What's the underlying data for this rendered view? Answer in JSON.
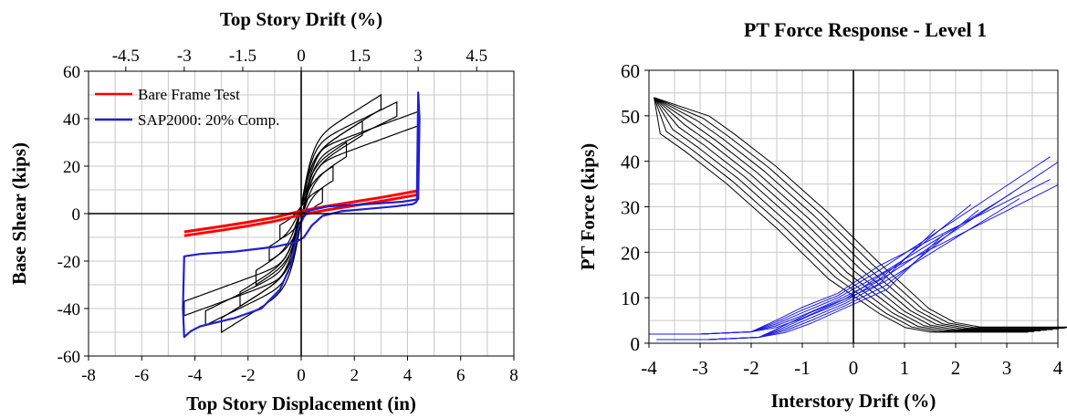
{
  "chart_data": [
    {
      "type": "line",
      "title": "",
      "top_axis_label": "Top Story Drift (%)",
      "top_ticks": [
        "-4.5",
        "-3",
        "-1.5",
        "0",
        "1.5",
        "3",
        "4.5"
      ],
      "top_tick_values": [
        -4.5,
        -3,
        -1.5,
        0,
        1.5,
        3,
        4.5
      ],
      "xlabel": "Top Story Displacement (in)",
      "ylabel": "Base Shear (kips)",
      "xlim": [
        -8,
        8
      ],
      "ylim": [
        -60,
        60
      ],
      "xticks": [
        "-8",
        "-6",
        "-4",
        "-2",
        "0",
        "2",
        "4",
        "6",
        "8"
      ],
      "yticks": [
        "-60",
        "-40",
        "-20",
        "0",
        "20",
        "40",
        "60"
      ],
      "grid": true,
      "legend_position": "top-left",
      "series": [
        {
          "name": "Bare Frame Test",
          "color": "#ff0000",
          "style": "thick-band",
          "x": [
            -4.4,
            -3,
            -2,
            -1,
            0,
            1,
            2,
            3,
            4.4
          ],
          "y": [
            -8.5,
            -6.2,
            -4.4,
            -2.4,
            0.3,
            2.4,
            4.2,
            6,
            8.8
          ]
        },
        {
          "name": "SAP2000: 20% Comp.",
          "color": "#2020d0",
          "x": [
            4.35,
            4.2,
            3.5,
            2.5,
            1.5,
            0.8,
            0.4,
            0.1,
            -0.2,
            -1,
            -2.5,
            -3.8,
            -4.4,
            -4.45,
            -4.4,
            -4.3,
            -4.15,
            -3.8,
            -2.5,
            -1.5,
            -0.8,
            -0.4,
            -0.1,
            0.2,
            1,
            2.5,
            3.8,
            4.4,
            4.45,
            4.4,
            4.35
          ],
          "y": [
            5,
            4,
            3,
            2,
            1,
            -1,
            -5,
            -10,
            -12,
            -14,
            -16,
            -17,
            -18,
            -40,
            -52,
            -51,
            -49.5,
            -47.5,
            -44,
            -40,
            -32,
            -22,
            -6,
            1,
            3,
            4,
            5,
            6,
            40,
            51,
            5
          ]
        },
        {
          "name": "",
          "color": "#000000",
          "style": "thin",
          "loops": [
            {
              "amp": 0.8,
              "peak": 8
            },
            {
              "amp": 1.2,
              "peak": 17
            },
            {
              "amp": 1.7,
              "peak": 27
            },
            {
              "amp": 2.3,
              "peak": 36
            },
            {
              "amp": 3,
              "peak": 47
            },
            {
              "amp": 3.6,
              "peak": 44
            },
            {
              "amp": 4.4,
              "peak": 40
            }
          ]
        }
      ]
    },
    {
      "type": "line",
      "title": "PT Force Response - Level 1",
      "xlabel": "Interstory Drift (%)",
      "ylabel": "PT Force (kips)",
      "xlim": [
        -4,
        4
      ],
      "ylim": [
        0,
        60
      ],
      "xticks": [
        "-4",
        "-3",
        "-2",
        "-1",
        "0",
        "1",
        "2",
        "3",
        "4"
      ],
      "yticks": [
        "0",
        "10",
        "20",
        "30",
        "40",
        "50",
        "60"
      ],
      "grid": true,
      "legend_position": "none",
      "series": [
        {
          "name": "",
          "color": "#000000",
          "x": [
            -3.9,
            -3.3,
            -2.8,
            -2,
            -1,
            0,
            1,
            1.5,
            2,
            3.9
          ],
          "y": [
            54,
            48,
            44,
            37,
            27,
            16,
            7,
            4,
            3,
            3
          ]
        },
        {
          "name": "",
          "color": "#1a1ae6",
          "x": [
            -4,
            -3,
            -2,
            -1.5,
            -1,
            0,
            1,
            1.5,
            2.3,
            3,
            3.85
          ],
          "y": [
            2,
            2,
            2.5,
            4,
            6,
            10,
            18,
            24,
            30,
            34,
            41
          ]
        }
      ]
    }
  ]
}
